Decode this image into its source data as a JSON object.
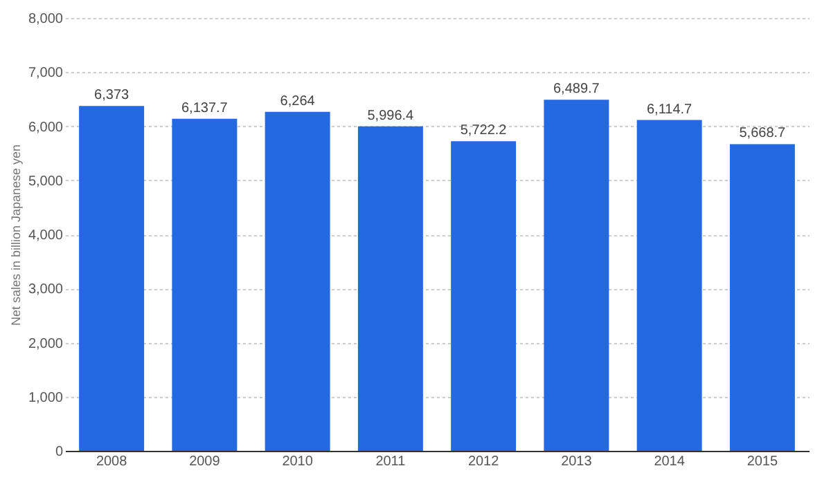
{
  "chart_data": {
    "type": "bar",
    "ylabel": "Net sales in billion Japanese yen",
    "categories": [
      "2008",
      "2009",
      "2010",
      "2011",
      "2012",
      "2013",
      "2014",
      "2015"
    ],
    "values": [
      6373,
      6137.7,
      6264,
      5996.4,
      5722.2,
      6489.7,
      6114.7,
      5668.7
    ],
    "value_labels": [
      "6,373",
      "6,137.7",
      "6,264",
      "5,996.4",
      "5,722.2",
      "6,489.7",
      "6,114.7",
      "5,668.7"
    ],
    "color": "#2569e0",
    "ylim": [
      0,
      8000
    ],
    "yticks": [
      0,
      {
        "value": 1000,
        "label": "1,000"
      },
      {
        "value": 2000,
        "label": "2,000"
      },
      {
        "value": 3000,
        "label": "3,000"
      },
      {
        "value": 4000,
        "label": "4,000"
      },
      {
        "value": 5000,
        "label": "5,000"
      },
      {
        "value": 6000,
        "label": "6,000"
      },
      {
        "value": 7000,
        "label": "7,000"
      },
      {
        "value": 8000,
        "label": "8,000"
      }
    ],
    "grid": "y"
  }
}
